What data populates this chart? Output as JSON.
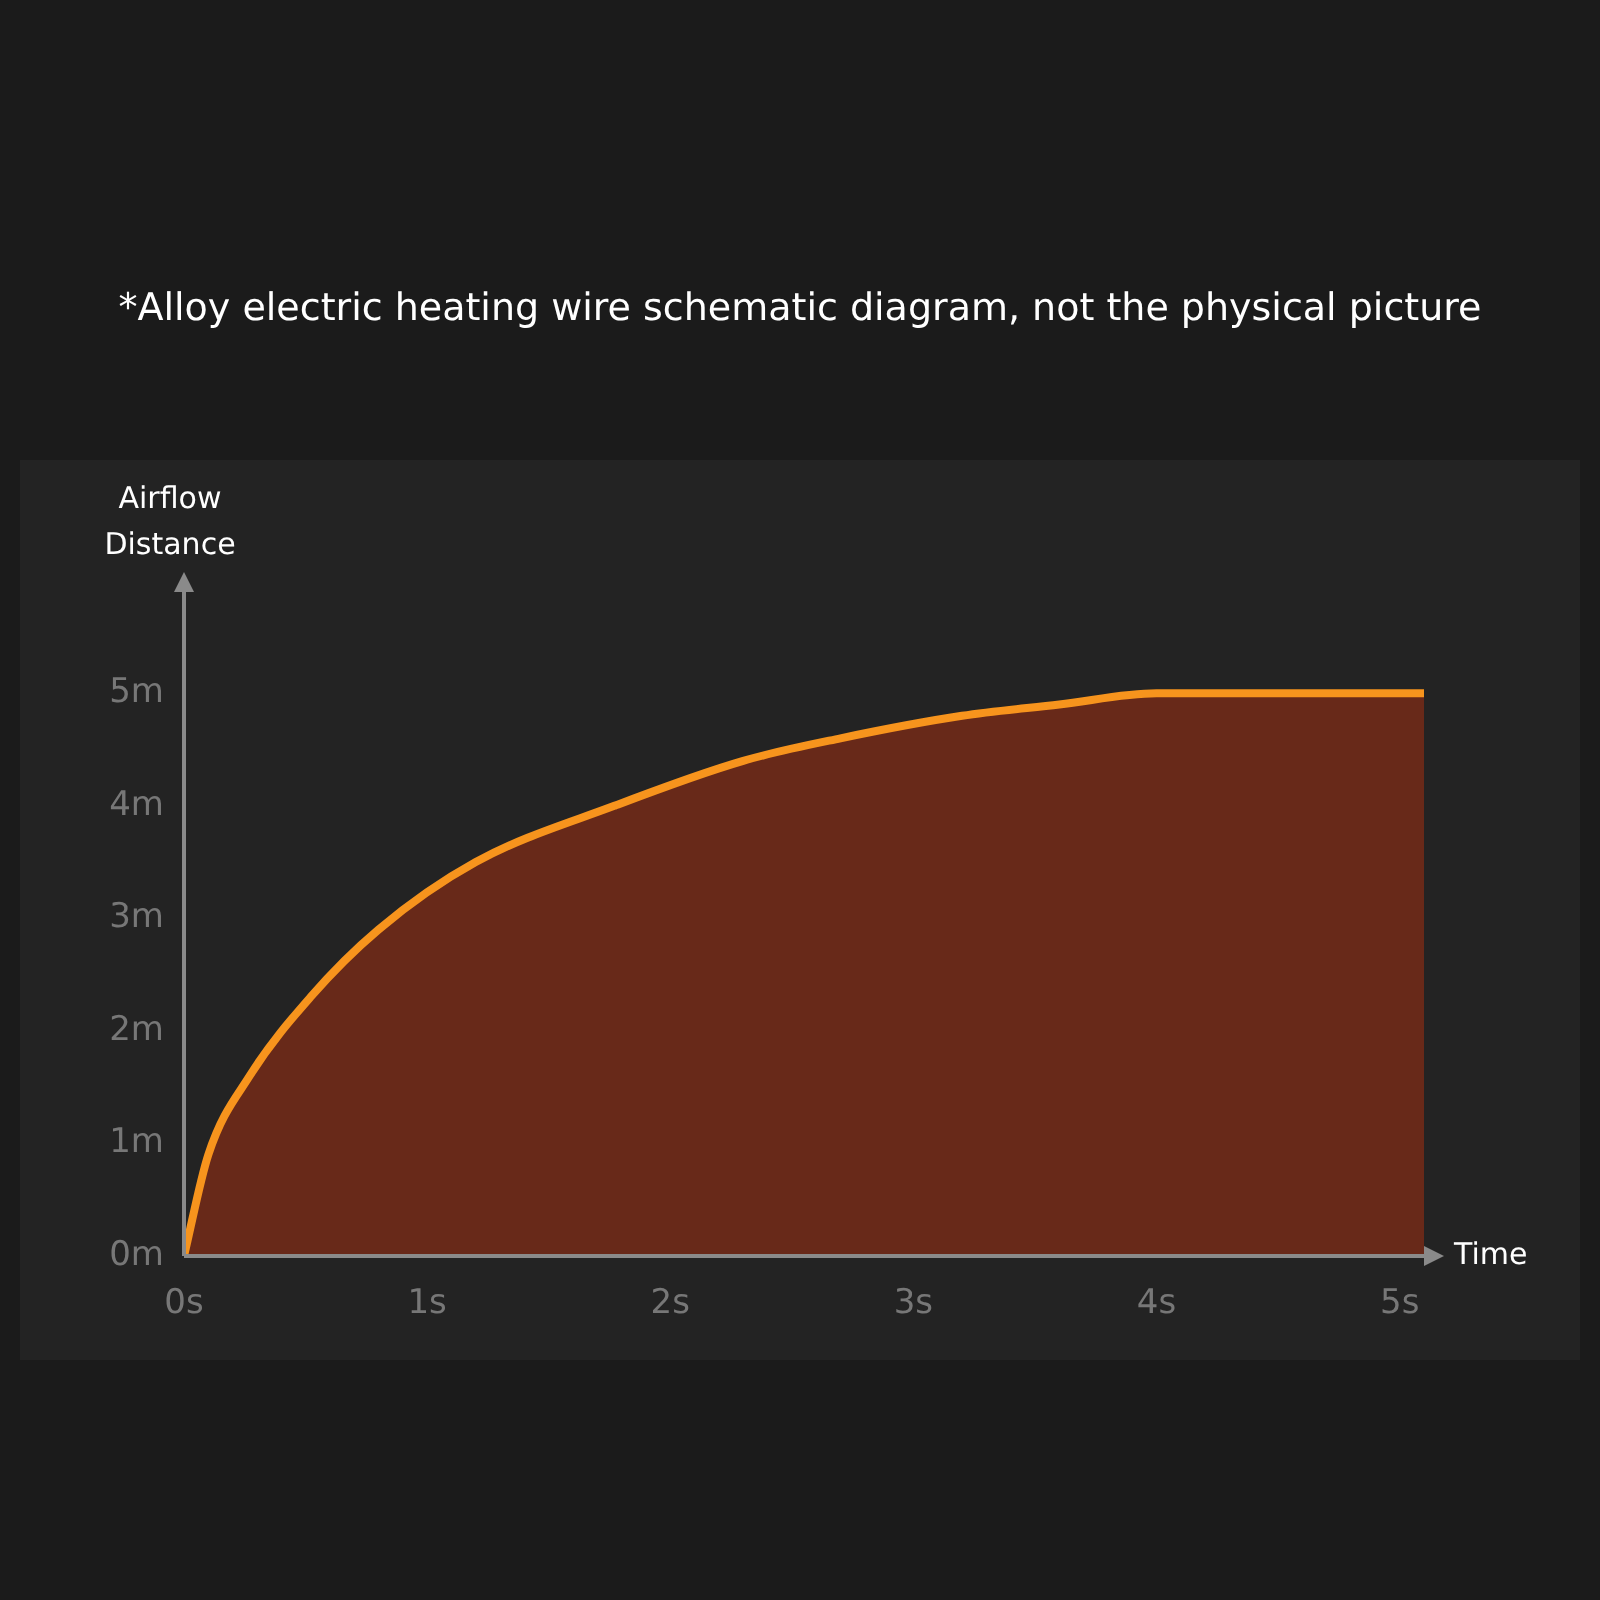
{
  "chart_data": {
    "type": "area",
    "title": "*Alloy electric heating wire schematic diagram, not the physical picture",
    "xlabel": "Time",
    "ylabel": "Airflow Distance",
    "x": [
      0,
      0.1,
      0.27,
      0.52,
      0.8,
      1.2,
      1.77,
      2.3,
      2.7,
      3.2,
      3.6,
      4.0,
      4.5,
      5.1
    ],
    "series": [
      {
        "color": "#f7941d",
        "values": [
          0,
          0.9,
          1.6,
          2.3,
          2.9,
          3.5,
          4.0,
          4.4,
          4.6,
          4.8,
          4.9,
          5.0,
          5.0,
          5.0
        ]
      }
    ],
    "xlim": [
      0,
      5.1
    ],
    "xticks": [
      {
        "value": 0,
        "label": "0s"
      },
      {
        "value": 1,
        "label": "1s"
      },
      {
        "value": 2,
        "label": "2s"
      },
      {
        "value": 3,
        "label": "3s"
      },
      {
        "value": 4,
        "label": "4s"
      },
      {
        "value": 5,
        "label": "5s"
      }
    ],
    "ylim": [
      0,
      5.9
    ],
    "yticks": [
      {
        "value": 0,
        "label": "0m"
      },
      {
        "value": 1,
        "label": "1m"
      },
      {
        "value": 2,
        "label": "2m"
      },
      {
        "value": 3,
        "label": "3m"
      },
      {
        "value": 4,
        "label": "4m"
      },
      {
        "value": 5,
        "label": "5m"
      }
    ],
    "grid": false,
    "legend": false,
    "marker": "none"
  }
}
